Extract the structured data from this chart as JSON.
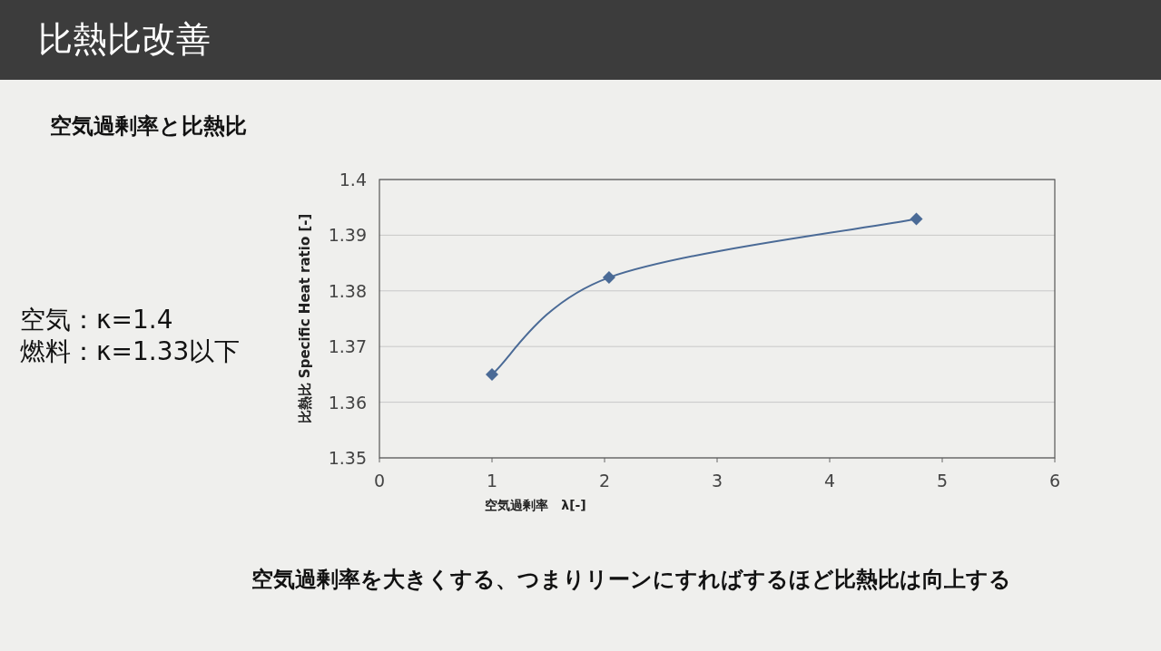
{
  "chart_data": {
    "type": "line",
    "title": "比熱比改善",
    "subtitle": "空気過剰率と比熱比",
    "xlabel": "空気過剰率　λ[-]",
    "ylabel": "比熱比  Specific Heat ratio [-]",
    "annotations": [
      "空気：κ=1.4",
      "燃料：κ=1.33以下",
      "空気過剰率を大きくする、つまりリーンにすればするほど比熱比は向上する"
    ],
    "x": [
      1.0,
      2.04,
      4.77
    ],
    "series": [
      {
        "color": "#4a6a96",
        "values": [
          1.365,
          1.3824,
          1.3929
        ]
      }
    ],
    "xlim": [
      0,
      6
    ],
    "ylim": [
      1.35,
      1.4
    ],
    "xticks": [
      0,
      1,
      2,
      3,
      4,
      5,
      6
    ],
    "yticks": [
      1.35,
      1.36,
      1.37,
      1.38,
      1.39,
      1.4
    ],
    "grid": "y",
    "marker": "diamond",
    "line_style": "solid"
  }
}
